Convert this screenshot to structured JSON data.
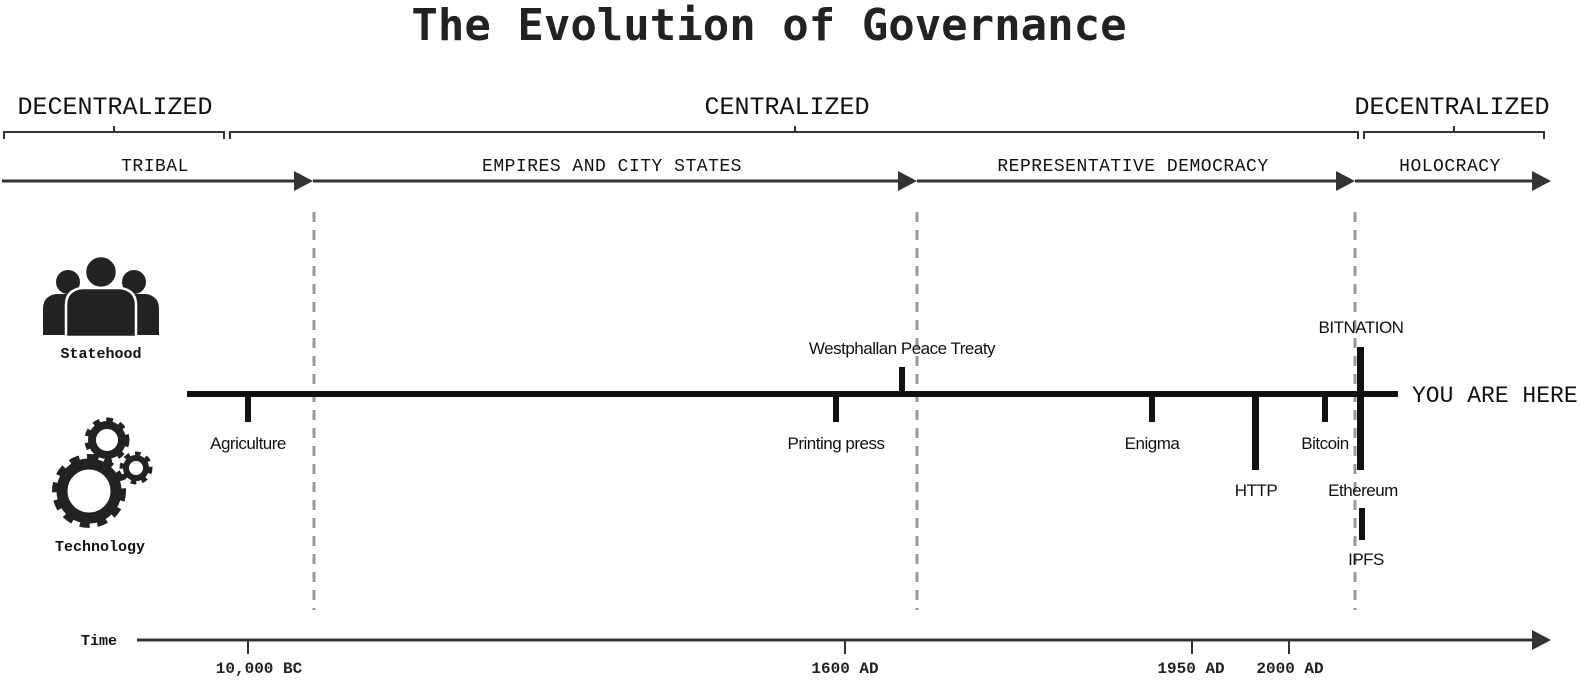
{
  "title": "The Evolution of Governance",
  "eras": [
    {
      "label": "DECENTRALIZED"
    },
    {
      "label": "CENTRALIZED"
    },
    {
      "label": "DECENTRALIZED"
    }
  ],
  "periods": [
    {
      "label": "TRIBAL"
    },
    {
      "label": "EMPIRES AND CITY STATES"
    },
    {
      "label": "REPRESENTATIVE DEMOCRACY"
    },
    {
      "label": "HOLOCRACY"
    }
  ],
  "rows": {
    "statehood": {
      "label": "Statehood",
      "icon": "people-icon"
    },
    "technology": {
      "label": "Technology",
      "icon": "gears-icon"
    }
  },
  "statehood_events": [
    {
      "label": "Westphallan Peace Treaty"
    },
    {
      "label": "BITNATION"
    }
  ],
  "technology_events": [
    {
      "label": "Agriculture"
    },
    {
      "label": "Printing press"
    },
    {
      "label": "Enigma"
    },
    {
      "label": "HTTP"
    },
    {
      "label": "Bitcoin"
    },
    {
      "label": "Ethereum"
    },
    {
      "label": "IPFS"
    }
  ],
  "you_are_here": "YOU ARE HERE",
  "time_axis": {
    "label": "Time",
    "ticks": [
      "10,000 BC",
      "1600 AD",
      "1950 AD",
      "2000 AD"
    ]
  },
  "colors": {
    "ink": "#111111",
    "arrow": "#333333",
    "dashed": "#999999"
  }
}
